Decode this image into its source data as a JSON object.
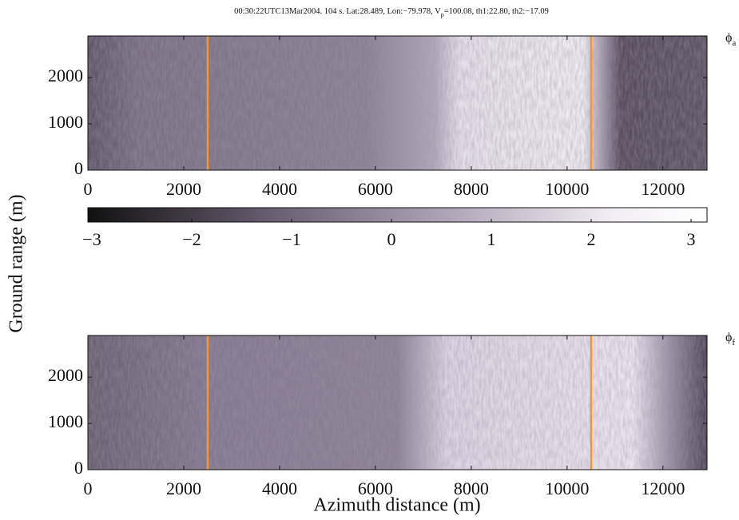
{
  "title_parts": [
    "00:30:22UTC13Mar2004. 104 s.  Lat:28.489, Lon:−79.978, V",
    "p",
    "=100.08, th1:22.80, th2:−17.09"
  ],
  "ylabel": "Ground range (m)",
  "xlabel": "Azimuth distance (m)",
  "colorbar": {
    "lim": [
      -3.04,
      3.16
    ],
    "ticks": [
      {
        "value": -3,
        "label": "−3"
      },
      {
        "value": -2,
        "label": "−2"
      },
      {
        "value": -1,
        "label": "−1"
      },
      0,
      1,
      2,
      3
    ]
  },
  "chart_data": [
    {
      "type": "image",
      "label": {
        "symbol": "ϕ",
        "subscript": "a"
      },
      "xlim": [
        0,
        12920
      ],
      "ylim": [
        0,
        2900
      ],
      "xticks": [
        0,
        2000,
        4000,
        6000,
        8000,
        10000,
        12000
      ],
      "yticks": [
        0,
        1000,
        2000
      ],
      "markers": [
        2500,
        10500
      ],
      "marker_color": "#e89a3c"
    },
    {
      "type": "image",
      "label": {
        "symbol": "ϕ",
        "subscript": "f"
      },
      "xlim": [
        0,
        12920
      ],
      "ylim": [
        0,
        2900
      ],
      "xticks": [
        0,
        2000,
        4000,
        6000,
        8000,
        10000,
        12000
      ],
      "yticks": [
        0,
        1000,
        2000
      ],
      "markers": [
        2500,
        10500
      ],
      "marker_color": "#e89a3c"
    }
  ]
}
